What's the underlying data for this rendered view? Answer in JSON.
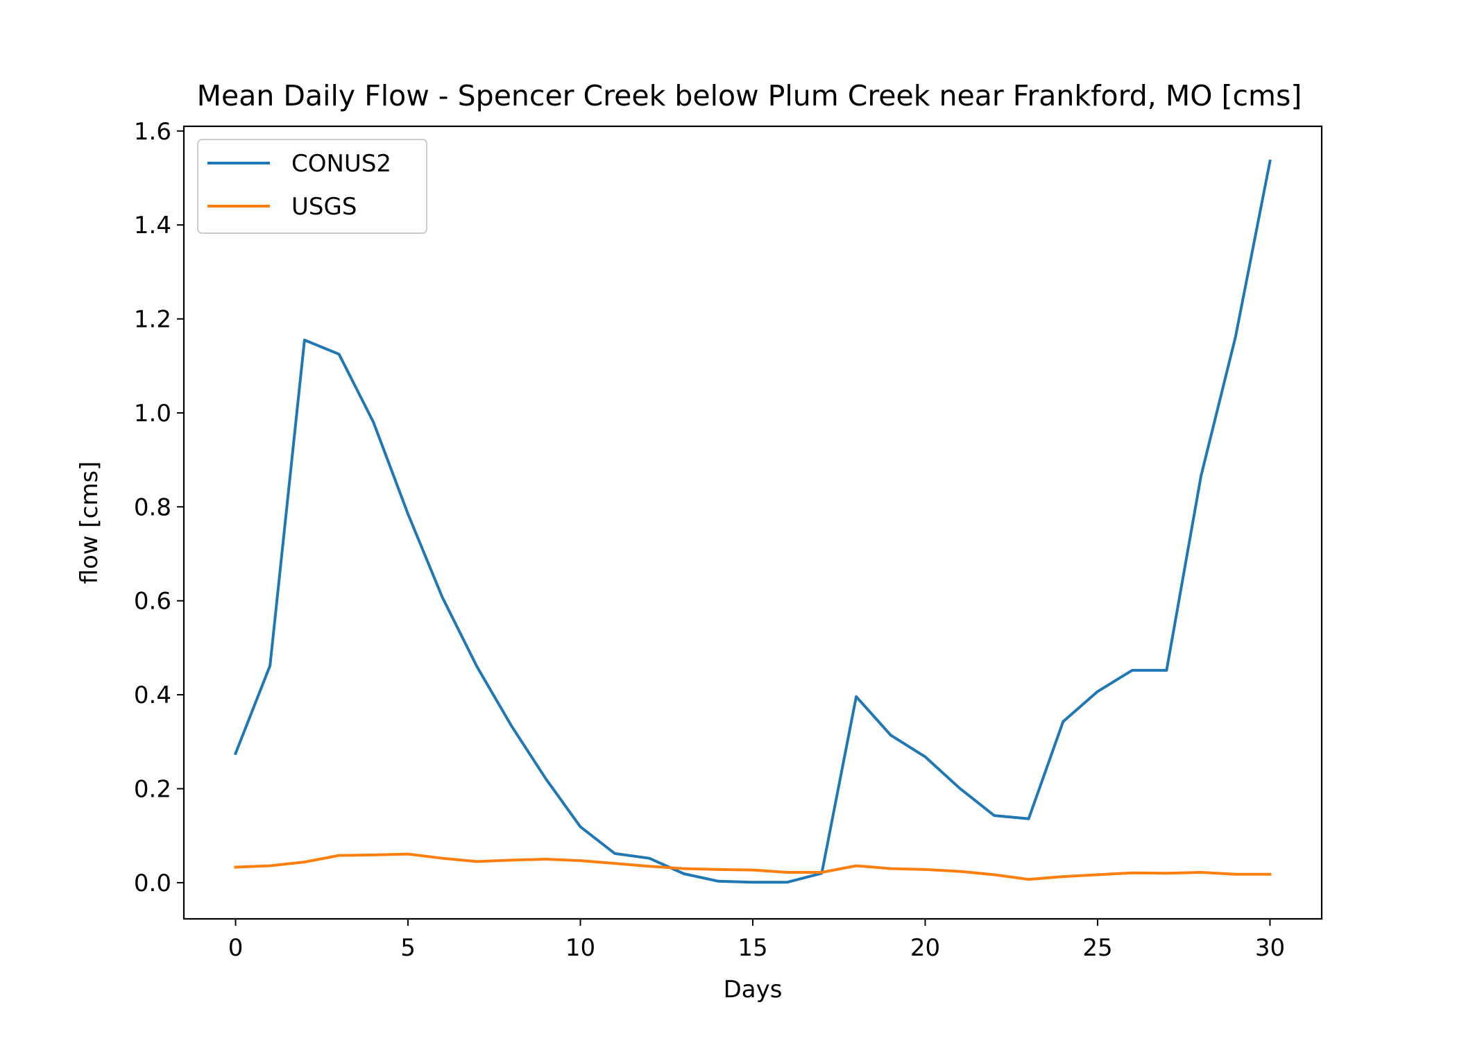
{
  "chart_data": {
    "type": "line",
    "title": "Mean Daily Flow - Spencer Creek below Plum Creek near Frankford, MO [cms]",
    "xlabel": "Days",
    "ylabel": "flow [cms]",
    "xlim": [
      -1.5,
      31.5
    ],
    "ylim": [
      -0.077,
      1.61
    ],
    "xticks": [
      0,
      5,
      10,
      15,
      20,
      25,
      30
    ],
    "xtick_labels": [
      "0",
      "5",
      "10",
      "15",
      "20",
      "25",
      "30"
    ],
    "yticks": [
      0.0,
      0.2,
      0.4,
      0.6,
      0.8,
      1.0,
      1.2,
      1.4,
      1.6
    ],
    "ytick_labels": [
      "0.0",
      "0.2",
      "0.4",
      "0.6",
      "0.8",
      "1.0",
      "1.2",
      "1.4",
      "1.6"
    ],
    "grid": false,
    "legend_position": "top-left",
    "x": [
      0,
      1,
      2,
      3,
      4,
      5,
      6,
      7,
      8,
      9,
      10,
      11,
      12,
      13,
      14,
      15,
      16,
      17,
      18,
      19,
      20,
      21,
      22,
      23,
      24,
      25,
      26,
      27,
      28,
      29,
      30
    ],
    "series": [
      {
        "name": "CONUS2",
        "color": "#1f77b4",
        "values": [
          0.275,
          0.462,
          1.155,
          1.125,
          0.98,
          0.785,
          0.607,
          0.46,
          0.334,
          0.221,
          0.119,
          0.062,
          0.052,
          0.019,
          0.003,
          0.001,
          0.001,
          0.02,
          0.396,
          0.314,
          0.268,
          0.201,
          0.143,
          0.136,
          0.343,
          0.407,
          0.452,
          0.452,
          0.866,
          1.162,
          1.536
        ]
      },
      {
        "name": "USGS",
        "color": "#ff7f0e",
        "values": [
          0.033,
          0.036,
          0.044,
          0.058,
          0.059,
          0.061,
          0.052,
          0.045,
          0.048,
          0.05,
          0.047,
          0.041,
          0.035,
          0.03,
          0.028,
          0.027,
          0.022,
          0.022,
          0.036,
          0.03,
          0.028,
          0.024,
          0.017,
          0.007,
          0.013,
          0.017,
          0.021,
          0.02,
          0.022,
          0.018,
          0.018
        ]
      }
    ]
  }
}
